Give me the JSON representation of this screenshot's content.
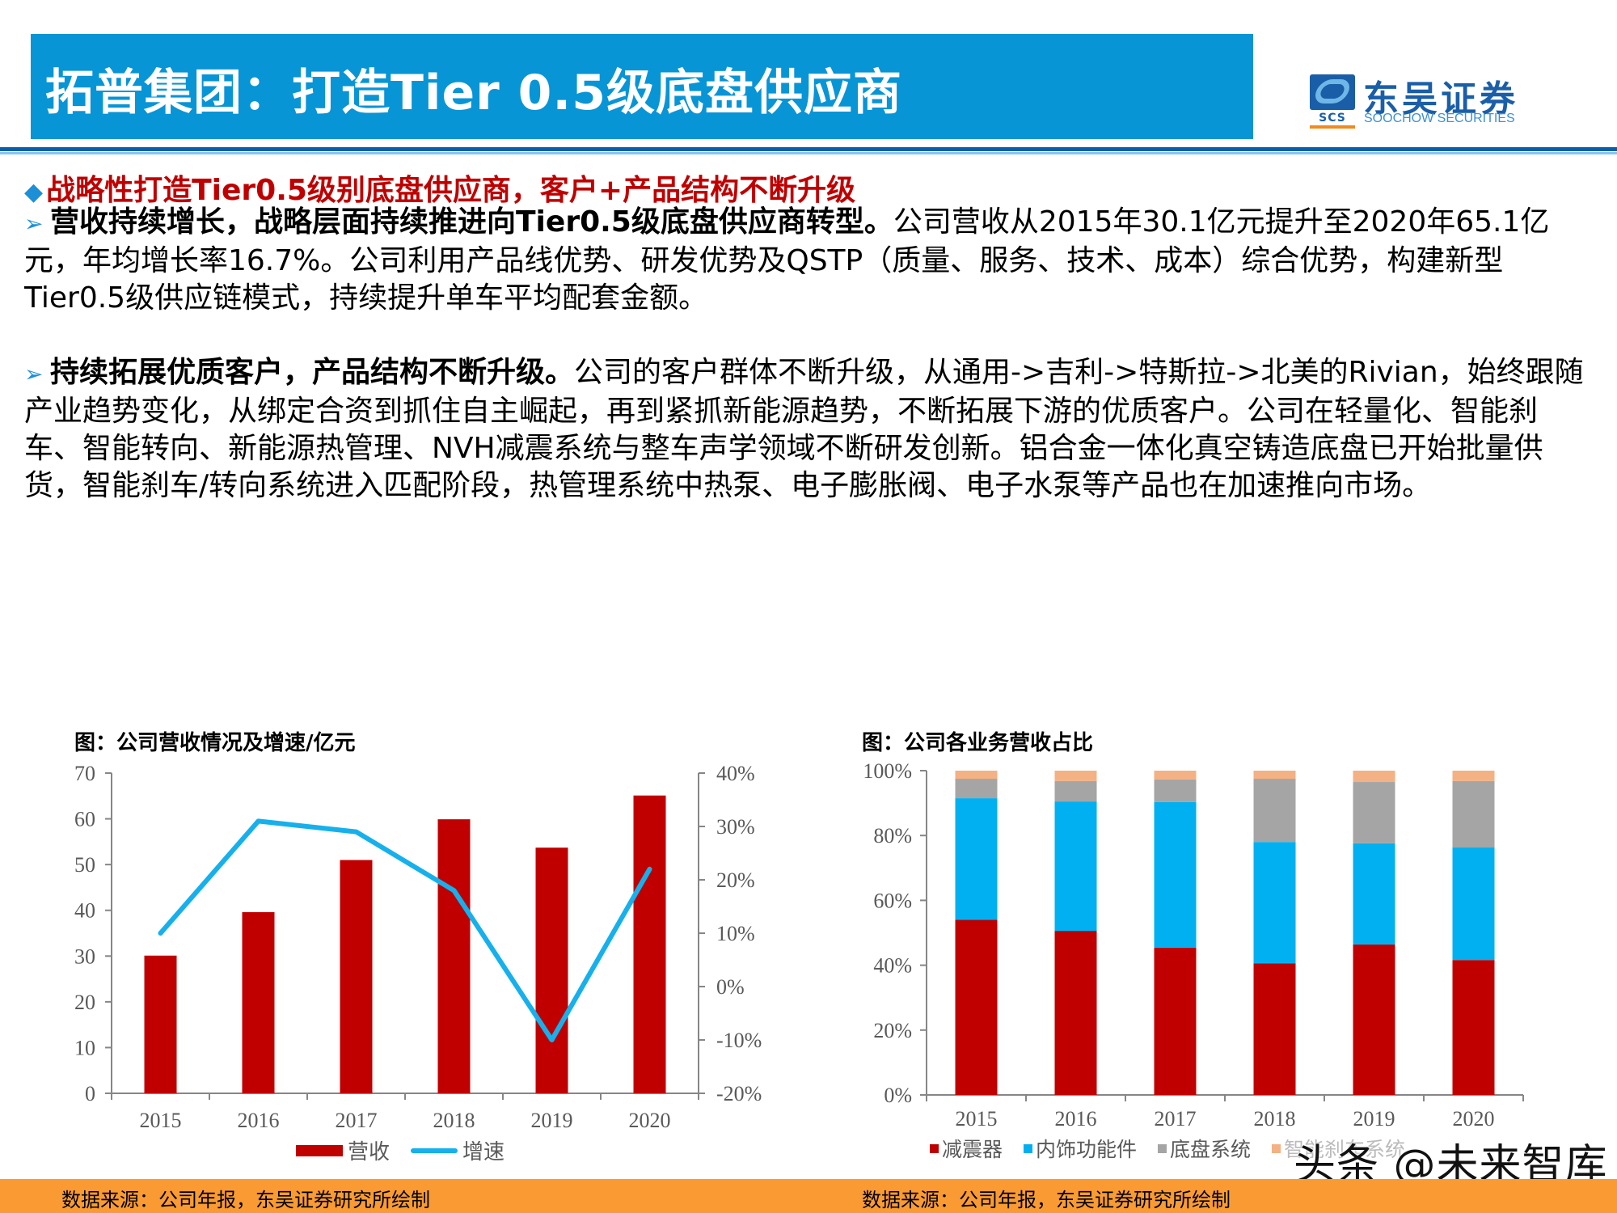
{
  "header": {
    "title": "拓普集团：打造Tier 0.5级底盘供应商",
    "logo": {
      "cn": "东吴证券",
      "en": "SOOCHOW SECURITIES",
      "mark": "SCS",
      "icon": "soochow-logo-icon"
    },
    "colors": {
      "title_bg": "#0795d6",
      "rule_dark": "#0b5fa8",
      "rule_light": "#8cc6ea"
    }
  },
  "content": {
    "heading": {
      "bullet": "◆",
      "text": "战略性打造Tier0.5级别底盘供应商，客户+产品结构不断升级",
      "color": "#c00000"
    },
    "points": [
      {
        "bullet": "➢",
        "lead": "营收持续增长，战略层面持续推进向Tier0.5级底盘供应商转型。",
        "body": "公司营收从2015年30.1亿元提升至2020年65.1亿元，年均增长率16.7%。公司利用产品线优势、研发优势及QSTP（质量、服务、技术、成本）综合优势，构建新型Tier0.5级供应链模式，持续提升单车平均配套金额。"
      },
      {
        "bullet": "➢",
        "lead": "持续拓展优质客户，产品结构不断升级。",
        "body": "公司的客户群体不断升级，从通用->吉利->特斯拉->北美的Rivian，始终跟随产业趋势变化，从绑定合资到抓住自主崛起，再到紧抓新能源趋势，不断拓展下游的优质客户。公司在轻量化、智能刹车、智能转向、新能源热管理、NVH减震系统与整车声学领域不断研发创新。铝合金一体化真空铸造底盘已开始批量供货，智能刹车/转向系统进入匹配阶段，热管理系统中热泵、电子膨胀阀、电子水泵等产品也在加速推向市场。"
      }
    ]
  },
  "charts": {
    "left": {
      "title": "图：公司营收情况及增速/亿元",
      "source": "数据来源：公司年报，东吴证券研究所绘制",
      "y_ticks": [
        "0",
        "10",
        "20",
        "30",
        "40",
        "50",
        "60",
        "70"
      ],
      "y2_ticks": [
        "-20%",
        "-10%",
        "0%",
        "10%",
        "20%",
        "30%",
        "40%"
      ],
      "categories": [
        "2015",
        "2016",
        "2017",
        "2018",
        "2019",
        "2020"
      ],
      "legend": [
        {
          "label": "营收",
          "color": "#c00000",
          "type": "bar"
        },
        {
          "label": "增速",
          "color": "#16b0ec",
          "type": "line"
        }
      ]
    },
    "right": {
      "title": "图：公司各业务营收占比",
      "source": "数据来源：公司年报，东吴证券研究所绘制",
      "y_ticks": [
        "0%",
        "20%",
        "40%",
        "60%",
        "80%",
        "100%"
      ],
      "categories": [
        "2015",
        "2016",
        "2017",
        "2018",
        "2019",
        "2020"
      ],
      "legend": [
        {
          "label": "减震器",
          "color": "#c00000"
        },
        {
          "label": "内饰功能件",
          "color": "#00b0f0"
        },
        {
          "label": "底盘系统",
          "color": "#a5a5a5"
        },
        {
          "label": "智能刹车系统",
          "color": "#f4b183"
        }
      ]
    }
  },
  "watermark": "头条 @未来智库",
  "chart_data": [
    {
      "type": "bar",
      "title": "图：公司营收情况及增速/亿元",
      "categories": [
        "2015",
        "2016",
        "2017",
        "2018",
        "2019",
        "2020"
      ],
      "series": [
        {
          "name": "营收",
          "type": "bar",
          "axis": "left",
          "values": [
            30.1,
            39.6,
            51.0,
            59.9,
            53.7,
            65.1
          ]
        },
        {
          "name": "增速",
          "type": "line",
          "axis": "right",
          "values": [
            0.1,
            0.31,
            0.29,
            0.18,
            -0.1,
            0.22
          ]
        }
      ],
      "ylabel": "亿元",
      "ylim": [
        0,
        70
      ],
      "y2lim": [
        -0.2,
        0.4
      ],
      "grid": false,
      "legend_position": "bottom"
    },
    {
      "type": "bar",
      "stacked": true,
      "title": "图：公司各业务营收占比",
      "categories": [
        "2015",
        "2016",
        "2017",
        "2018",
        "2019",
        "2020"
      ],
      "series": [
        {
          "name": "减震器",
          "values": [
            0.54,
            0.506,
            0.454,
            0.406,
            0.464,
            0.416
          ]
        },
        {
          "name": "内饰功能件",
          "values": [
            0.375,
            0.399,
            0.449,
            0.374,
            0.312,
            0.347
          ]
        },
        {
          "name": "底盘系统",
          "values": [
            0.06,
            0.063,
            0.07,
            0.195,
            0.189,
            0.205
          ]
        },
        {
          "name": "智能刹车系统",
          "values": [
            0.025,
            0.032,
            0.027,
            0.025,
            0.035,
            0.032
          ]
        }
      ],
      "ylim": [
        0,
        1
      ],
      "grid": false,
      "legend_position": "bottom"
    }
  ]
}
